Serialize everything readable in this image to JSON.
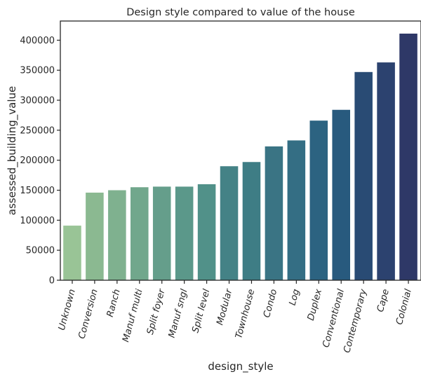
{
  "chart_data": {
    "type": "bar",
    "title": "Design style compared to value of the house",
    "xlabel": "design_style",
    "ylabel": "assessed_building_value",
    "categories": [
      "Unknown",
      "Conversion",
      "Ranch",
      "Manuf multi",
      "Split foyer",
      "Manuf sngl",
      "Split level",
      "Modular",
      "Townhouse",
      "Condo",
      "Log",
      "Duplex",
      "Conventional",
      "Contemporary",
      "Cape",
      "Colonial"
    ],
    "values": [
      91000,
      146000,
      150000,
      155000,
      156000,
      156000,
      160000,
      190000,
      197000,
      223000,
      233000,
      266000,
      284000,
      347000,
      363000,
      411000
    ],
    "colors": [
      "#99c496",
      "#8bb991",
      "#7fb18f",
      "#71a78c",
      "#659e8b",
      "#5b988a",
      "#519189",
      "#448286",
      "#3e7d85",
      "#3a7484",
      "#346e84",
      "#2c6381",
      "#285a7e",
      "#294b74",
      "#2c426f",
      "#2e3867"
    ],
    "ylim": [
      0,
      432000
    ],
    "yticks": [
      0,
      50000,
      100000,
      150000,
      200000,
      250000,
      300000,
      350000,
      400000
    ],
    "grid": false,
    "legend": "none"
  }
}
